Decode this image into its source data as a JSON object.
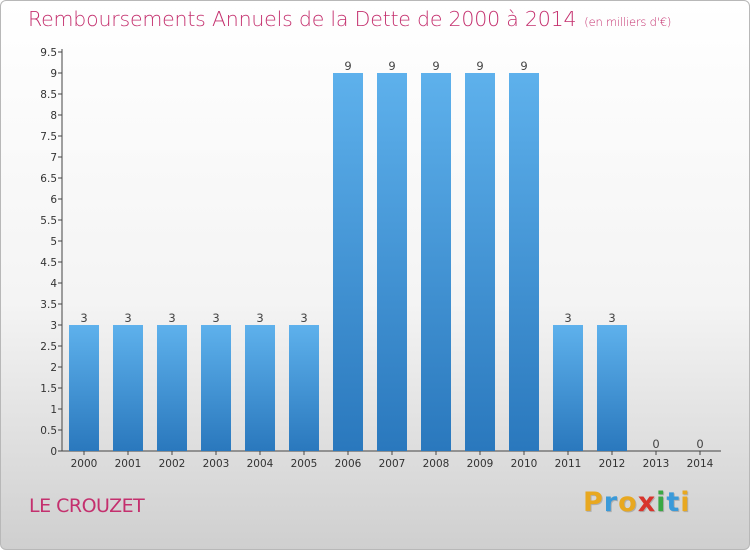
{
  "chart_data": {
    "type": "bar",
    "title": "Remboursements Annuels de la Dette de 2000 à 2014",
    "subtitle": "(en milliers d'€)",
    "categories": [
      "2000",
      "2001",
      "2002",
      "2003",
      "2004",
      "2005",
      "2006",
      "2007",
      "2008",
      "2009",
      "2010",
      "2011",
      "2012",
      "2013",
      "2014"
    ],
    "values": [
      3,
      3,
      3,
      3,
      3,
      3,
      9,
      9,
      9,
      9,
      9,
      3,
      3,
      0,
      0
    ],
    "ylim": [
      0,
      9.5
    ],
    "yticks": [
      "0",
      "0.5",
      "1",
      "1.5",
      "2",
      "2.5",
      "3",
      "3.5",
      "4",
      "4.5",
      "5",
      "5.5",
      "6",
      "6.5",
      "7",
      "7.5",
      "8",
      "8.5",
      "9",
      "9.5"
    ],
    "grid": false,
    "bar_color": "#3f95dc"
  },
  "footer": {
    "place": "LE CROUZET",
    "logo_letters": [
      "P",
      "r",
      "o",
      "x",
      "i",
      "t",
      "i"
    ],
    "logo_colors": [
      "#e8a820",
      "#3a9ad9",
      "#e8a820",
      "#d8342c",
      "#3aa844",
      "#3a9ad9",
      "#e8a820"
    ]
  },
  "colors": {
    "accent": "#c4306e"
  }
}
